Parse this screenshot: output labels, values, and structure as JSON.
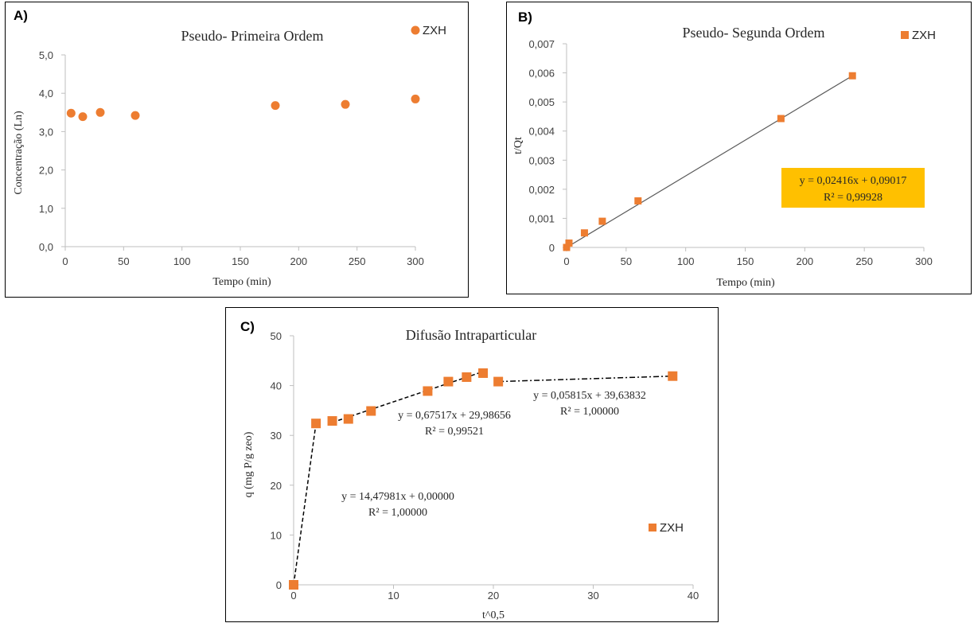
{
  "colors": {
    "marker": "#ED7D31",
    "axis": "#bfbfbf",
    "text": "#262626",
    "fitline": "#595959",
    "eqbox": "#FFC000"
  },
  "chart_data": [
    {
      "panel": "A)",
      "type": "scatter",
      "title": "Pseudo- Primeira Ordem",
      "xlabel": "Tempo (min)",
      "ylabel": "Concentração (Ln)",
      "xlim": [
        0,
        300
      ],
      "ylim": [
        0,
        5
      ],
      "xticks": [
        "0",
        "50",
        "100",
        "150",
        "200",
        "250",
        "300"
      ],
      "yticks": [
        "0,0",
        "1,0",
        "2,0",
        "3,0",
        "4,0",
        "5,0"
      ],
      "legend_position": "top-right",
      "series": [
        {
          "name": "ZXH",
          "marker": "circle",
          "x": [
            5,
            15,
            30,
            60,
            180,
            240,
            300
          ],
          "y": [
            3.48,
            3.39,
            3.5,
            3.42,
            3.68,
            3.71,
            3.85
          ]
        }
      ]
    },
    {
      "panel": "B)",
      "type": "scatter",
      "title": "Pseudo- Segunda Ordem",
      "xlabel": "Tempo (min)",
      "ylabel": "t/Qt",
      "xlim": [
        0,
        300
      ],
      "ylim": [
        0,
        0.007
      ],
      "xticks": [
        "0",
        "50",
        "100",
        "150",
        "200",
        "250",
        "300"
      ],
      "yticks": [
        "0",
        "0,001",
        "0,002",
        "0,003",
        "0,004",
        "0,005",
        "0,006",
        "0,007"
      ],
      "legend_position": "top-right",
      "series": [
        {
          "name": "ZXH",
          "marker": "square",
          "x": [
            0,
            2,
            15,
            30,
            60,
            180,
            240
          ],
          "y": [
            0.0,
            0.00015,
            0.0005,
            0.0009,
            0.0016,
            0.00443,
            0.0059
          ]
        }
      ],
      "fit": {
        "x": [
          0,
          240
        ],
        "y": [
          0.0,
          0.0059
        ],
        "equation": "y = 0,02416x + 0,09017",
        "r2": "R² = 0,99928"
      }
    },
    {
      "panel": "C)",
      "type": "scatter",
      "title": "Difusão Intraparticular",
      "xlabel": "t^0,5",
      "ylabel": "q (mg P/g zeo)",
      "xlim": [
        0,
        40
      ],
      "ylim": [
        0,
        50
      ],
      "xticks": [
        "0",
        "10",
        "20",
        "30",
        "40"
      ],
      "yticks": [
        "0",
        "10",
        "20",
        "30",
        "40",
        "50"
      ],
      "legend_position": "bottom-right",
      "series": [
        {
          "name": "ZXH",
          "marker": "square",
          "x": [
            0,
            2.24,
            3.87,
            5.48,
            7.75,
            13.42,
            15.49,
            17.32,
            18.97,
            20.49,
            37.95
          ],
          "y": [
            0,
            32.4,
            32.9,
            33.3,
            34.9,
            38.9,
            40.8,
            41.7,
            42.5,
            40.8,
            41.9
          ]
        }
      ],
      "fits": [
        {
          "x": [
            0,
            2.24
          ],
          "y": [
            0,
            32.4
          ],
          "style": "dashed",
          "equation": "y = 14,47981x  + 0,00000",
          "r2": "R² = 1,00000"
        },
        {
          "x": [
            3.87,
            18.97
          ],
          "y": [
            32.6,
            42.8
          ],
          "style": "dashed",
          "equation": "y = 0,67517x  + 29,98656",
          "r2": "R² = 0,99521"
        },
        {
          "x": [
            20.49,
            37.95
          ],
          "y": [
            40.8,
            41.9
          ],
          "style": "dashdot",
          "equation": "y = 0,05815x  + 39,63832",
          "r2": "R² = 1,00000"
        }
      ]
    }
  ]
}
